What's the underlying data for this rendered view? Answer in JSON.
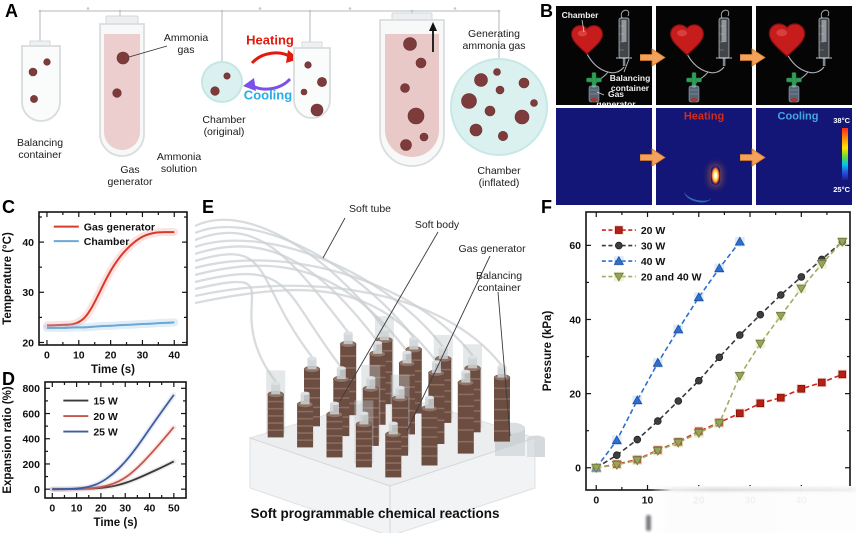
{
  "panels": {
    "A": {
      "letter": "A",
      "labels": {
        "ammonia_gas": "Ammonia\ngas",
        "balancing_container": "Balancing\ncontainer",
        "gas_generator": "Gas\ngenerator",
        "ammonia_solution": "Ammonia\nsolution",
        "chamber_original": "Chamber\n(original)",
        "heating": "Heating",
        "cooling": "Cooling",
        "generating_ammonia_gas": "Generating\nammonia gas",
        "chamber_inflated": "Chamber\n(inflated)"
      },
      "colors": {
        "heating": "#e1190c",
        "cooling": "#28ade8",
        "cooling_arrow": "#7b51e8",
        "liquid": "#e9caca",
        "bubble": "#7e3b3b",
        "chamber_fill": "#dbf1f0"
      }
    },
    "B": {
      "letter": "B",
      "labels": {
        "chamber": "Chamber",
        "balancing_container": "Balancing\ncontainer",
        "gas_generator": "Gas\ngenerator",
        "heating": "Heating",
        "cooling": "Cooling",
        "temp_max": "38°C",
        "temp_min": "25°C"
      },
      "colors": {
        "heart": "#c61c1c",
        "thermal_bg": "#131677",
        "heating_text": "#d42a1a",
        "cooling_text": "#45a7e0",
        "arrow": "#f3a15b"
      }
    },
    "C": {
      "letter": "C"
    },
    "D": {
      "letter": "D"
    },
    "E": {
      "letter": "E",
      "labels": {
        "soft_tube": "Soft tube",
        "soft_body": "Soft body",
        "gas_generator": "Gas generator",
        "balancing_container": "Balancing\ncontainer"
      },
      "caption": "Soft programmable chemical reactions"
    },
    "F": {
      "letter": "F"
    }
  },
  "chart_data": [
    {
      "id": "C",
      "type": "line",
      "title": "",
      "xlabel": "Time (s)",
      "ylabel": "Temperature (°C)",
      "xlim": [
        -2.5,
        44
      ],
      "ylim": [
        19.5,
        46
      ],
      "xticks": [
        0,
        10,
        20,
        30,
        40
      ],
      "xminor": [
        5,
        15,
        25,
        35
      ],
      "yticks": [
        20,
        30,
        40
      ],
      "yminor": [
        25,
        35,
        45
      ],
      "grid": false,
      "legend": {
        "x": 0.1,
        "y": 0.89,
        "rh": 14.5,
        "sw": 25
      },
      "series": [
        {
          "name": "Gas generator",
          "color": "#d93a2b",
          "width": 2,
          "smooth": true,
          "band": "rgba(237,128,118,0.22)",
          "band_w": 8,
          "x": [
            0,
            2,
            4,
            6,
            8,
            10,
            12,
            14,
            16,
            18,
            20,
            22,
            24,
            26,
            28,
            30,
            32,
            34,
            36,
            38,
            40
          ],
          "y": [
            23.4,
            23.4,
            23.5,
            23.5,
            23.6,
            24.0,
            25.0,
            26.8,
            29.3,
            31.9,
            34.3,
            36.3,
            37.9,
            39.2,
            40.3,
            41.1,
            41.6,
            41.9,
            42.0,
            42.0,
            42.0
          ]
        },
        {
          "name": "Chamber",
          "color": "#6da7d4",
          "width": 2,
          "smooth": true,
          "band": "rgba(150,200,235,0.30)",
          "band_w": 8,
          "x": [
            0,
            2,
            4,
            6,
            8,
            10,
            12,
            14,
            16,
            18,
            20,
            22,
            24,
            26,
            28,
            30,
            32,
            34,
            36,
            38,
            40
          ],
          "y": [
            22.9,
            22.9,
            22.9,
            22.9,
            23.0,
            23.0,
            23.0,
            23.1,
            23.2,
            23.3,
            23.3,
            23.4,
            23.5,
            23.5,
            23.6,
            23.7,
            23.7,
            23.8,
            23.9,
            23.9,
            24.0
          ]
        }
      ]
    },
    {
      "id": "D",
      "type": "line",
      "title": "",
      "xlabel": "Time (s)",
      "ylabel": "Expansion ratio (%)",
      "xlim": [
        -3,
        55
      ],
      "ylim": [
        -70,
        850
      ],
      "xticks": [
        0,
        10,
        20,
        30,
        40,
        50
      ],
      "xminor": [
        5,
        15,
        25,
        35,
        45
      ],
      "yticks": [
        0,
        200,
        400,
        600,
        800
      ],
      "yminor": [
        100,
        300,
        500,
        700
      ],
      "grid": false,
      "legend": {
        "x": 0.13,
        "y": 0.84,
        "rh": 15.5,
        "sw": 25
      },
      "series": [
        {
          "name": "15 W",
          "color": "#3a3a3a",
          "width": 1.8,
          "smooth": true,
          "band": "rgba(130,130,130,0.15)",
          "band_w": 5,
          "x": [
            0,
            5,
            10,
            15,
            20,
            25,
            30,
            35,
            40,
            45,
            50
          ],
          "y": [
            0,
            0,
            1,
            3,
            9,
            22,
            48,
            85,
            128,
            172,
            220
          ]
        },
        {
          "name": "20 W",
          "color": "#c4584c",
          "width": 1.8,
          "smooth": true,
          "band": "rgba(235,130,120,0.18)",
          "band_w": 5,
          "x": [
            0,
            5,
            10,
            15,
            20,
            25,
            30,
            35,
            40,
            45,
            50
          ],
          "y": [
            0,
            0,
            1,
            6,
            16,
            40,
            88,
            168,
            268,
            378,
            492
          ]
        },
        {
          "name": "25 W",
          "color": "#3f5c9e",
          "width": 1.8,
          "smooth": true,
          "band": "rgba(130,150,220,0.18)",
          "band_w": 5,
          "x": [
            0,
            5,
            10,
            15,
            20,
            25,
            30,
            35,
            40,
            45,
            50
          ],
          "y": [
            0,
            1,
            4,
            16,
            52,
            120,
            215,
            338,
            478,
            615,
            748
          ]
        }
      ]
    },
    {
      "id": "F",
      "type": "line",
      "title": "",
      "xlabel": "",
      "ylabel": "Pressure (kPa)",
      "xlim": [
        -2,
        49.5
      ],
      "ylim": [
        -6,
        69
      ],
      "xticks": [
        0,
        10,
        20,
        30,
        40
      ],
      "xminor": [
        5,
        15,
        25,
        35,
        45
      ],
      "yticks": [
        0,
        20,
        40,
        60
      ],
      "yminor": [
        10,
        30,
        50
      ],
      "grid": false,
      "legend": {
        "x": 0.06,
        "y": 0.935,
        "rh": 15.5,
        "sw": 34
      },
      "series": [
        {
          "name": "20 W",
          "color": "#cf2318",
          "width": 1.6,
          "dash": "5,3",
          "marker": "square",
          "marker_color": "#b51f14",
          "edge": "#7e150d",
          "halo": "rgba(240,120,110,0.28)",
          "x": [
            0,
            4,
            8,
            12,
            16,
            20,
            24,
            28,
            32,
            36,
            40,
            44,
            48
          ],
          "y": [
            0,
            1.0,
            2.2,
            4.8,
            7.0,
            9.8,
            12.2,
            14.7,
            17.4,
            18.9,
            21.3,
            23.0,
            25.2
          ]
        },
        {
          "name": "30 W",
          "color": "#3a3a3a",
          "width": 1.6,
          "dash": "5,3",
          "marker": "circle",
          "marker_color": "#3f3f3f",
          "edge": "#1f1f1f",
          "x": [
            0,
            4,
            8,
            12,
            16,
            20,
            24,
            28,
            32,
            36,
            40,
            44,
            48
          ],
          "y": [
            0,
            3.4,
            7.6,
            12.6,
            18.0,
            23.5,
            29.8,
            35.8,
            41.3,
            46.6,
            51.5,
            56.2,
            61.0
          ]
        },
        {
          "name": "40 W",
          "color": "#2e6fd0",
          "width": 1.6,
          "dash": "5,3",
          "marker": "triangle-up",
          "marker_color": "#2e6fd0",
          "edge": "#1d4e9e",
          "halo": "rgba(130,180,235,0.28)",
          "x": [
            0,
            4,
            8,
            12,
            16,
            20,
            24,
            28
          ],
          "y": [
            0,
            7.4,
            18.2,
            28.3,
            37.3,
            46.0,
            53.8,
            61.0
          ]
        },
        {
          "name": "20 and 40 W",
          "color": "#a3ad62",
          "width": 1.6,
          "dash": "5,3",
          "marker": "triangle-down",
          "marker_color": "#97a45c",
          "edge": "#6f7a3e",
          "halo": "rgba(215,220,150,0.38)",
          "x": [
            0,
            4,
            8,
            12,
            16,
            20,
            24,
            28,
            32,
            36,
            40,
            44,
            48
          ],
          "y": [
            0,
            0.8,
            2.0,
            4.6,
            6.8,
            9.4,
            12.0,
            24.8,
            33.5,
            41.0,
            48.4,
            55.0,
            61.0
          ]
        }
      ]
    }
  ]
}
